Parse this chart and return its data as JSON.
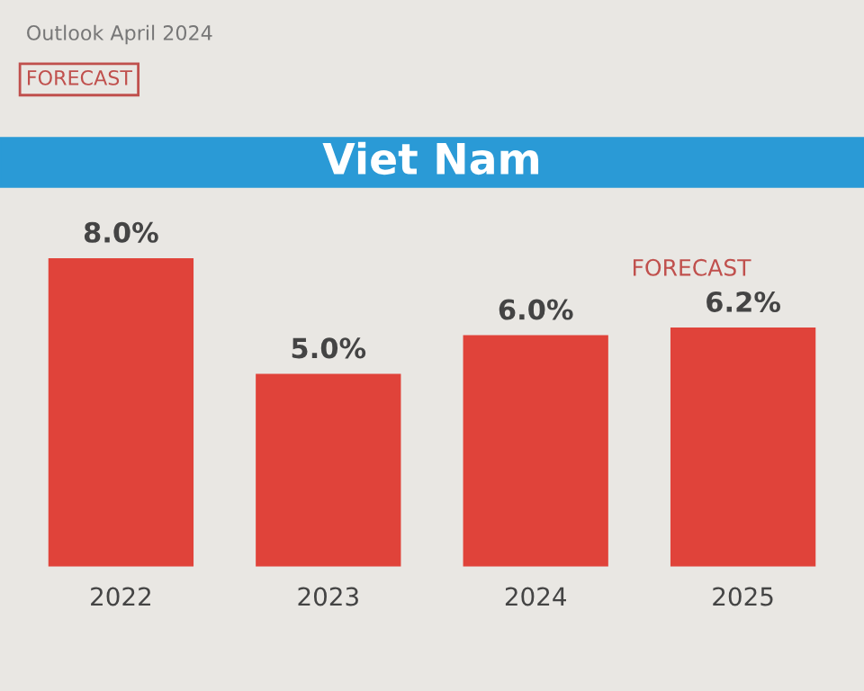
{
  "chart_data": {
    "type": "bar",
    "title": "Viet Nam",
    "categories": [
      "2022",
      "2023",
      "2024",
      "2025"
    ],
    "values": [
      8.0,
      5.0,
      6.0,
      6.2
    ],
    "value_labels": [
      "8.0%",
      "5.0%",
      "6.0%",
      "6.2%"
    ],
    "color": "#e0433a",
    "annotations": [
      "Outlook April 2024",
      "FORECAST",
      "FORECAST"
    ],
    "grid": false,
    "legend": false
  }
}
